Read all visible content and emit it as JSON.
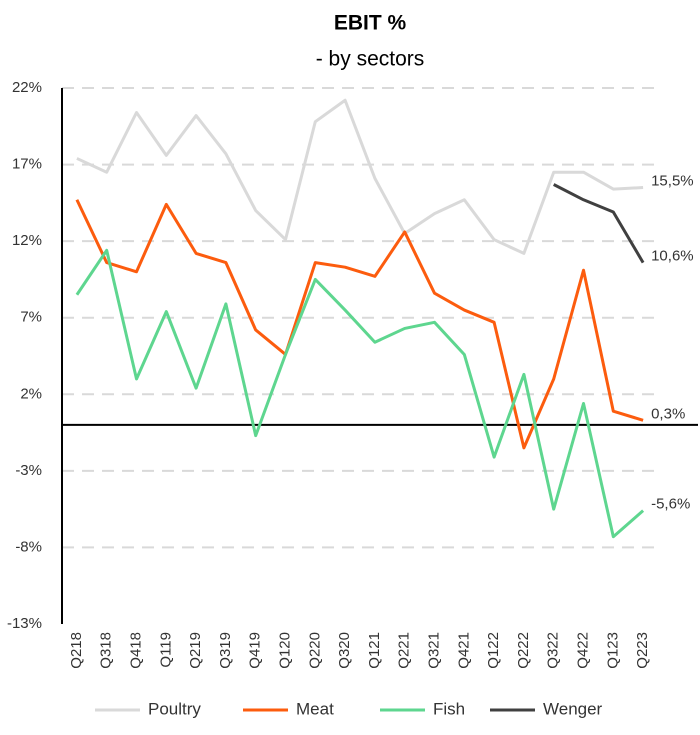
{
  "chart_data": {
    "type": "line",
    "title": "EBIT %",
    "subtitle": "- by sectors",
    "categories": [
      "Q218",
      "Q318",
      "Q418",
      "Q119",
      "Q219",
      "Q319",
      "Q419",
      "Q120",
      "Q220",
      "Q320",
      "Q121",
      "Q221",
      "Q321",
      "Q421",
      "Q122",
      "Q222",
      "Q322",
      "Q422",
      "Q123",
      "Q223"
    ],
    "series": [
      {
        "name": "Poultry",
        "color": "#d9d9d9",
        "values": [
          17.4,
          16.5,
          20.4,
          17.6,
          20.2,
          17.7,
          14.0,
          12.1,
          19.8,
          21.2,
          16.1,
          12.5,
          13.8,
          14.7,
          12.1,
          11.2,
          16.5,
          16.5,
          15.4,
          15.5
        ],
        "end_label": "15,5%"
      },
      {
        "name": "Meat",
        "color": "#fc5c0e",
        "values": [
          14.7,
          10.6,
          10.0,
          14.4,
          11.2,
          10.6,
          6.2,
          4.6,
          10.6,
          10.3,
          9.7,
          12.6,
          8.6,
          7.5,
          6.7,
          -1.5,
          3.0,
          10.1,
          0.9,
          0.3
        ],
        "end_label": "0,3%"
      },
      {
        "name": "Fish",
        "color": "#5ed68f",
        "values": [
          8.5,
          11.4,
          3.0,
          7.4,
          2.4,
          7.9,
          -0.7,
          4.6,
          9.5,
          7.5,
          5.4,
          6.3,
          6.7,
          4.6,
          -2.1,
          3.3,
          -5.5,
          1.4,
          -7.3,
          -5.6
        ],
        "end_label": "-5,6%"
      },
      {
        "name": "Wenger",
        "color": "#404040",
        "values": [
          null,
          null,
          null,
          null,
          null,
          null,
          null,
          null,
          null,
          null,
          null,
          null,
          null,
          null,
          null,
          null,
          15.7,
          14.7,
          13.9,
          10.6
        ],
        "end_label": "10,6%"
      }
    ],
    "ylim": [
      -13,
      22
    ],
    "yticks": [
      {
        "value": -13,
        "label": "-13%"
      },
      {
        "value": -8,
        "label": "-8%"
      },
      {
        "value": -3,
        "label": "-3%"
      },
      {
        "value": 2,
        "label": "2%"
      },
      {
        "value": 7,
        "label": "7%"
      },
      {
        "value": 12,
        "label": "12%"
      },
      {
        "value": 17,
        "label": "17%"
      },
      {
        "value": 22,
        "label": "22%"
      }
    ],
    "grid": true,
    "legend": "bottom"
  }
}
